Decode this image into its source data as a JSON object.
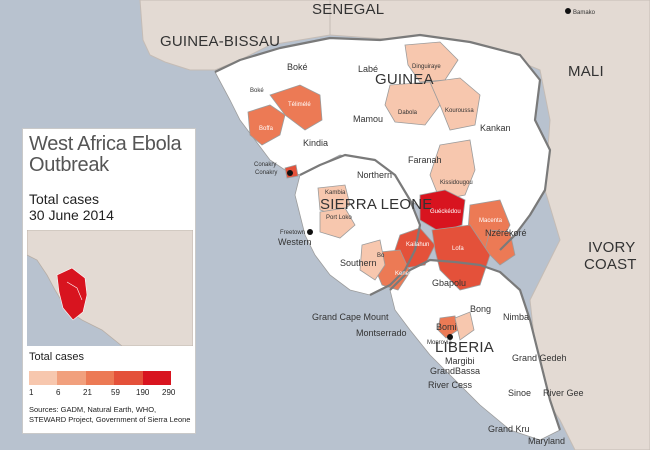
{
  "map": {
    "countries": {
      "senegal": "SENEGAL",
      "guinea_bissau": "GUINEA-BISSAU",
      "guinea": "GUINEA",
      "mali": "MALI",
      "sierra_leone": "SIERRA LEONE",
      "liberia": "LIBERIA",
      "ivory_coast_1": "IVORY",
      "ivory_coast_2": "COAST"
    },
    "regions": {
      "boke": "Boké",
      "boke_small": "Boké",
      "labe": "Labé",
      "telimele": "Télimélé",
      "boffa": "Boffa",
      "mamou": "Mamou",
      "dinguiraye": "Dinguiraye",
      "dabola": "Dabola",
      "kouroussa": "Kouroussa",
      "faranah": "Faranah",
      "kankan": "Kankan",
      "kindia": "Kindia",
      "conakry": "Conakry",
      "conakry_city": "Conakry",
      "northern": "Northern",
      "kambia": "Kambia",
      "port_loko": "Port Loko",
      "kissidougou": "Kissidougou",
      "gueckedou": "Guéckédou",
      "macenta": "Macenta",
      "nzerekore": "Nzérékoré",
      "freetown": "Freetown",
      "western": "Western",
      "kailahun": "Kailahun",
      "lofa": "Lofa",
      "bo": "Bo",
      "kenema": "Kenema",
      "southern": "Southern",
      "gbapolu": "Gbapolu",
      "bong": "Bong",
      "grand_cape_mount": "Grand Cape Mount",
      "nimba": "Nimba",
      "bomi": "Bomi",
      "montserrado": "Montserrado",
      "monrovia": "Monrovia",
      "margibi": "Margibi",
      "grand_bassa": "GrandBassa",
      "grand_gedeh": "Grand Gedeh",
      "river_cess": "River Cess",
      "sinoe": "Sinoe",
      "river_gee": "River Gee",
      "grand_kru": "Grand Kru",
      "maryland": "Maryland",
      "bamako": "Bamako"
    }
  },
  "panel": {
    "title": "West Africa Ebola Outbreak",
    "subtitle_1": "Total cases",
    "subtitle_2": "30 June 2014",
    "legend_title": "Total cases",
    "legend_ticks": [
      "1",
      "6",
      "21",
      "59",
      "190",
      "290"
    ],
    "sources": "Sources: GADM, Natural Earth, WHO, STEWARD Project, Government of Sierra Leone"
  },
  "colors": {
    "ocean": "#b8c2cf",
    "land_outside": "#e3dad3",
    "land_affected_country": "#ffffff",
    "scale": [
      "#f7c7ae",
      "#f1a07d",
      "#ec7a55",
      "#e4513a",
      "#d8141f"
    ]
  }
}
